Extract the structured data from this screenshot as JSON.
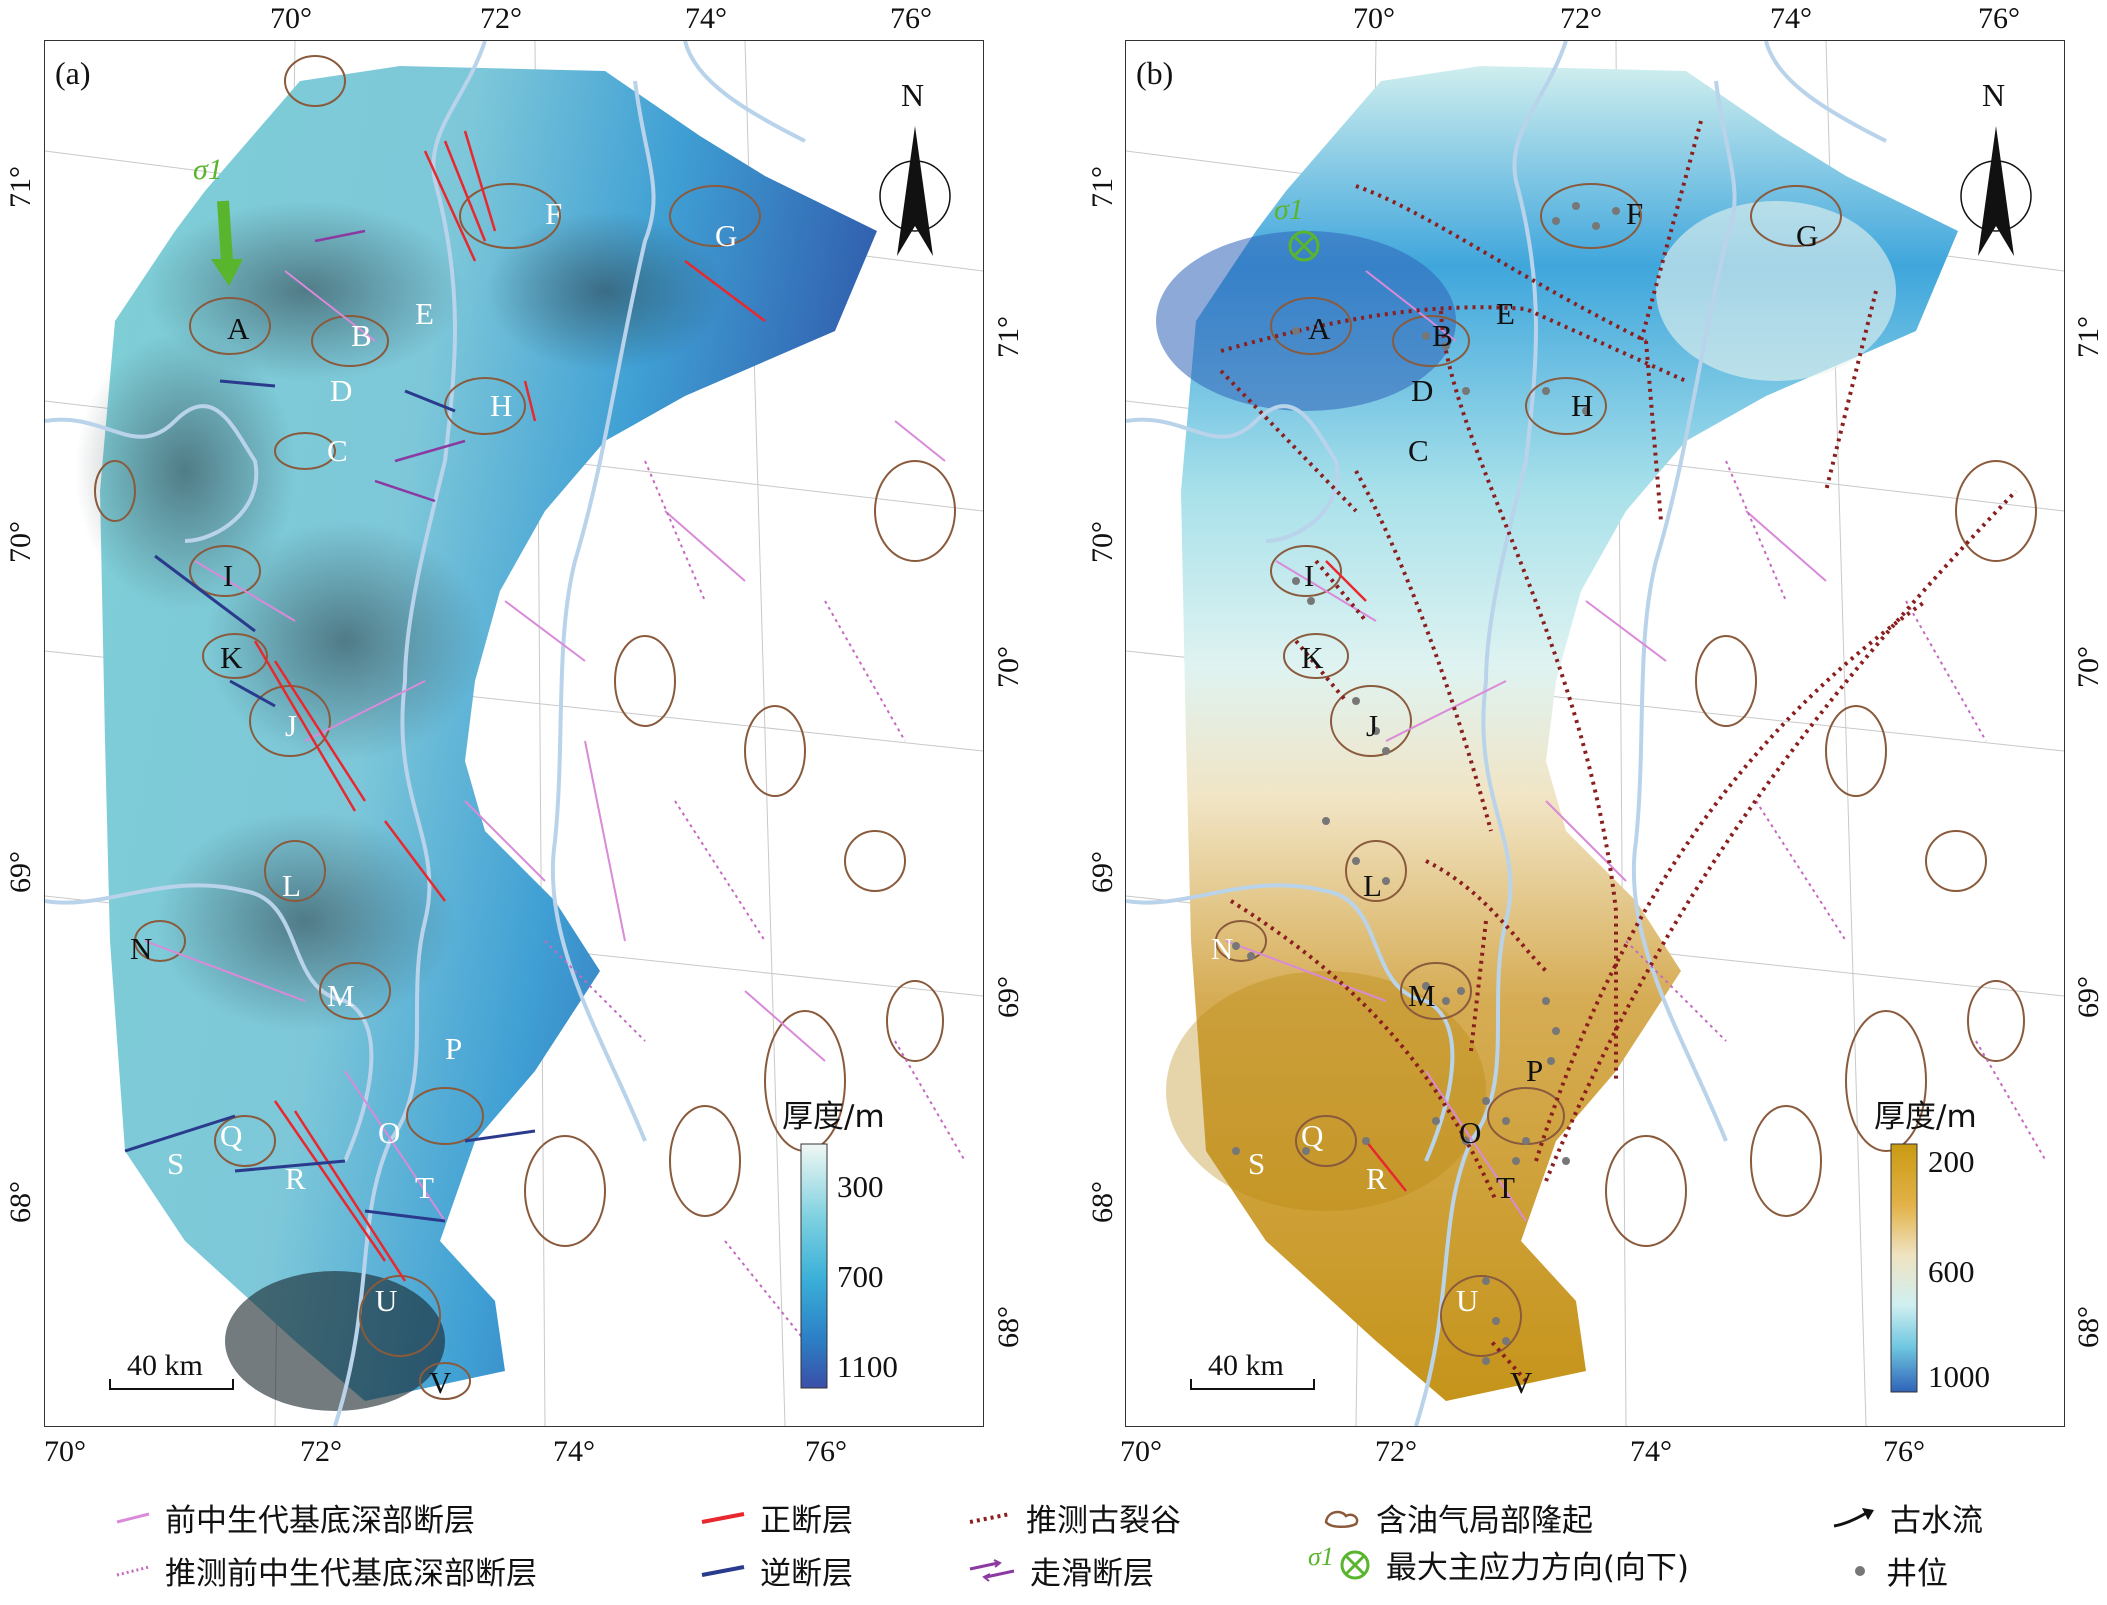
{
  "figure": {
    "panels": [
      {
        "id": "a",
        "label": "(a)",
        "colorbar": {
          "title": "厚度/m",
          "ticks": [
            "300",
            "700",
            "1100"
          ],
          "colors": [
            "#f0f7f4",
            "#7fd1e0",
            "#3bb0d8",
            "#2c7fc6",
            "#3a4fa8"
          ]
        },
        "scalebar": "40 km",
        "north": "N",
        "sigma_label": "σ1",
        "sites": [
          "A",
          "B",
          "C",
          "D",
          "E",
          "F",
          "G",
          "H",
          "I",
          "J",
          "K",
          "L",
          "M",
          "N",
          "O",
          "P",
          "Q",
          "R",
          "S",
          "T",
          "U",
          "V"
        ]
      },
      {
        "id": "b",
        "label": "(b)",
        "colorbar": {
          "title": "厚度/m",
          "ticks": [
            "200",
            "600",
            "1000"
          ],
          "colors": [
            "#c99a12",
            "#e3b24a",
            "#efe3c2",
            "#cfeff0",
            "#6fc6e0",
            "#2f62b8"
          ]
        },
        "scalebar": "40 km",
        "north": "N",
        "sigma_label": "σ1",
        "sites": [
          "A",
          "B",
          "C",
          "D",
          "E",
          "F",
          "G",
          "H",
          "I",
          "J",
          "K",
          "L",
          "M",
          "N",
          "O",
          "P",
          "Q",
          "R",
          "S",
          "T",
          "U",
          "V"
        ]
      }
    ],
    "top_ticks": [
      "70°",
      "72°",
      "74°",
      "76°"
    ],
    "bottom_ticks": [
      "70°",
      "72°",
      "74°",
      "76°"
    ],
    "left_ticks": [
      "71°",
      "70°",
      "69°",
      "68°"
    ],
    "right_ticks": [
      "71°",
      "70°",
      "69°",
      "68°"
    ]
  },
  "legend": {
    "items": [
      {
        "key": "deep_fault",
        "label": "前中生代基底深部断层",
        "color": "#d98ad8"
      },
      {
        "key": "normal_fault",
        "label": "正断层",
        "color": "#e8282e"
      },
      {
        "key": "paleo_rift",
        "label": "推测古裂谷",
        "color": "#8b1f1f"
      },
      {
        "key": "uplift",
        "label": "含油气局部隆起",
        "color": "#8a5a3c"
      },
      {
        "key": "paleo_flow",
        "label": "古水流",
        "color": "#111111"
      },
      {
        "key": "inferred_deep_fault",
        "label": "推测前中生代基底深部断层",
        "color": "#c46ac0"
      },
      {
        "key": "reverse_fault",
        "label": "逆断层",
        "color": "#2a3a8c"
      },
      {
        "key": "strike_slip",
        "label": "走滑断层",
        "color": "#8a3aa0"
      },
      {
        "key": "sigma",
        "label": "最大主应力方向(向下)",
        "prefix": "σ1",
        "color": "#5ab52e"
      },
      {
        "key": "well",
        "label": "井位",
        "color": "#777777"
      }
    ]
  }
}
